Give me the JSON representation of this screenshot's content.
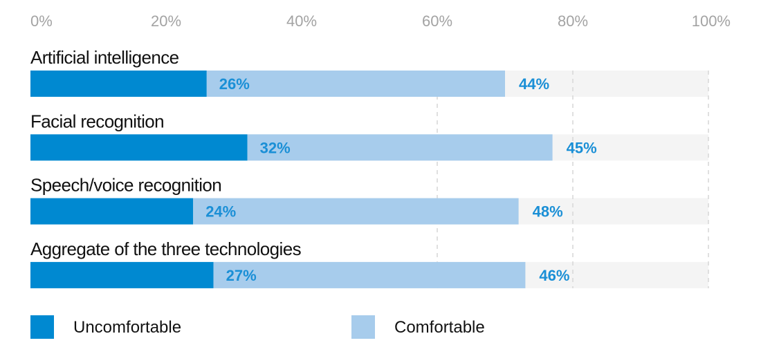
{
  "chart_data": {
    "type": "bar",
    "orientation": "horizontal",
    "stacked": true,
    "categories": [
      "Artificial intelligence",
      "Facial recognition",
      "Speech/voice recognition",
      "Aggregate of the three technologies"
    ],
    "series": [
      {
        "name": "Uncomfortable",
        "values": [
          26,
          32,
          24,
          27
        ],
        "color": "#0089d1"
      },
      {
        "name": "Comfortable",
        "values": [
          44,
          45,
          48,
          46
        ],
        "color": "#a7ccec"
      }
    ],
    "data_labels": {
      "Uncomfortable": [
        "26%",
        "32%",
        "24%",
        "27%"
      ],
      "Comfortable": [
        "44%",
        "45%",
        "48%",
        "46%"
      ]
    },
    "x_ticks": [
      "0%",
      "20%",
      "40%",
      "60%",
      "80%",
      "100%"
    ],
    "xlim": [
      0,
      100
    ],
    "title": "",
    "xlabel": "",
    "ylabel": "",
    "grid": true,
    "legend": "bottom-left",
    "track_color": "#f4f4f4"
  }
}
